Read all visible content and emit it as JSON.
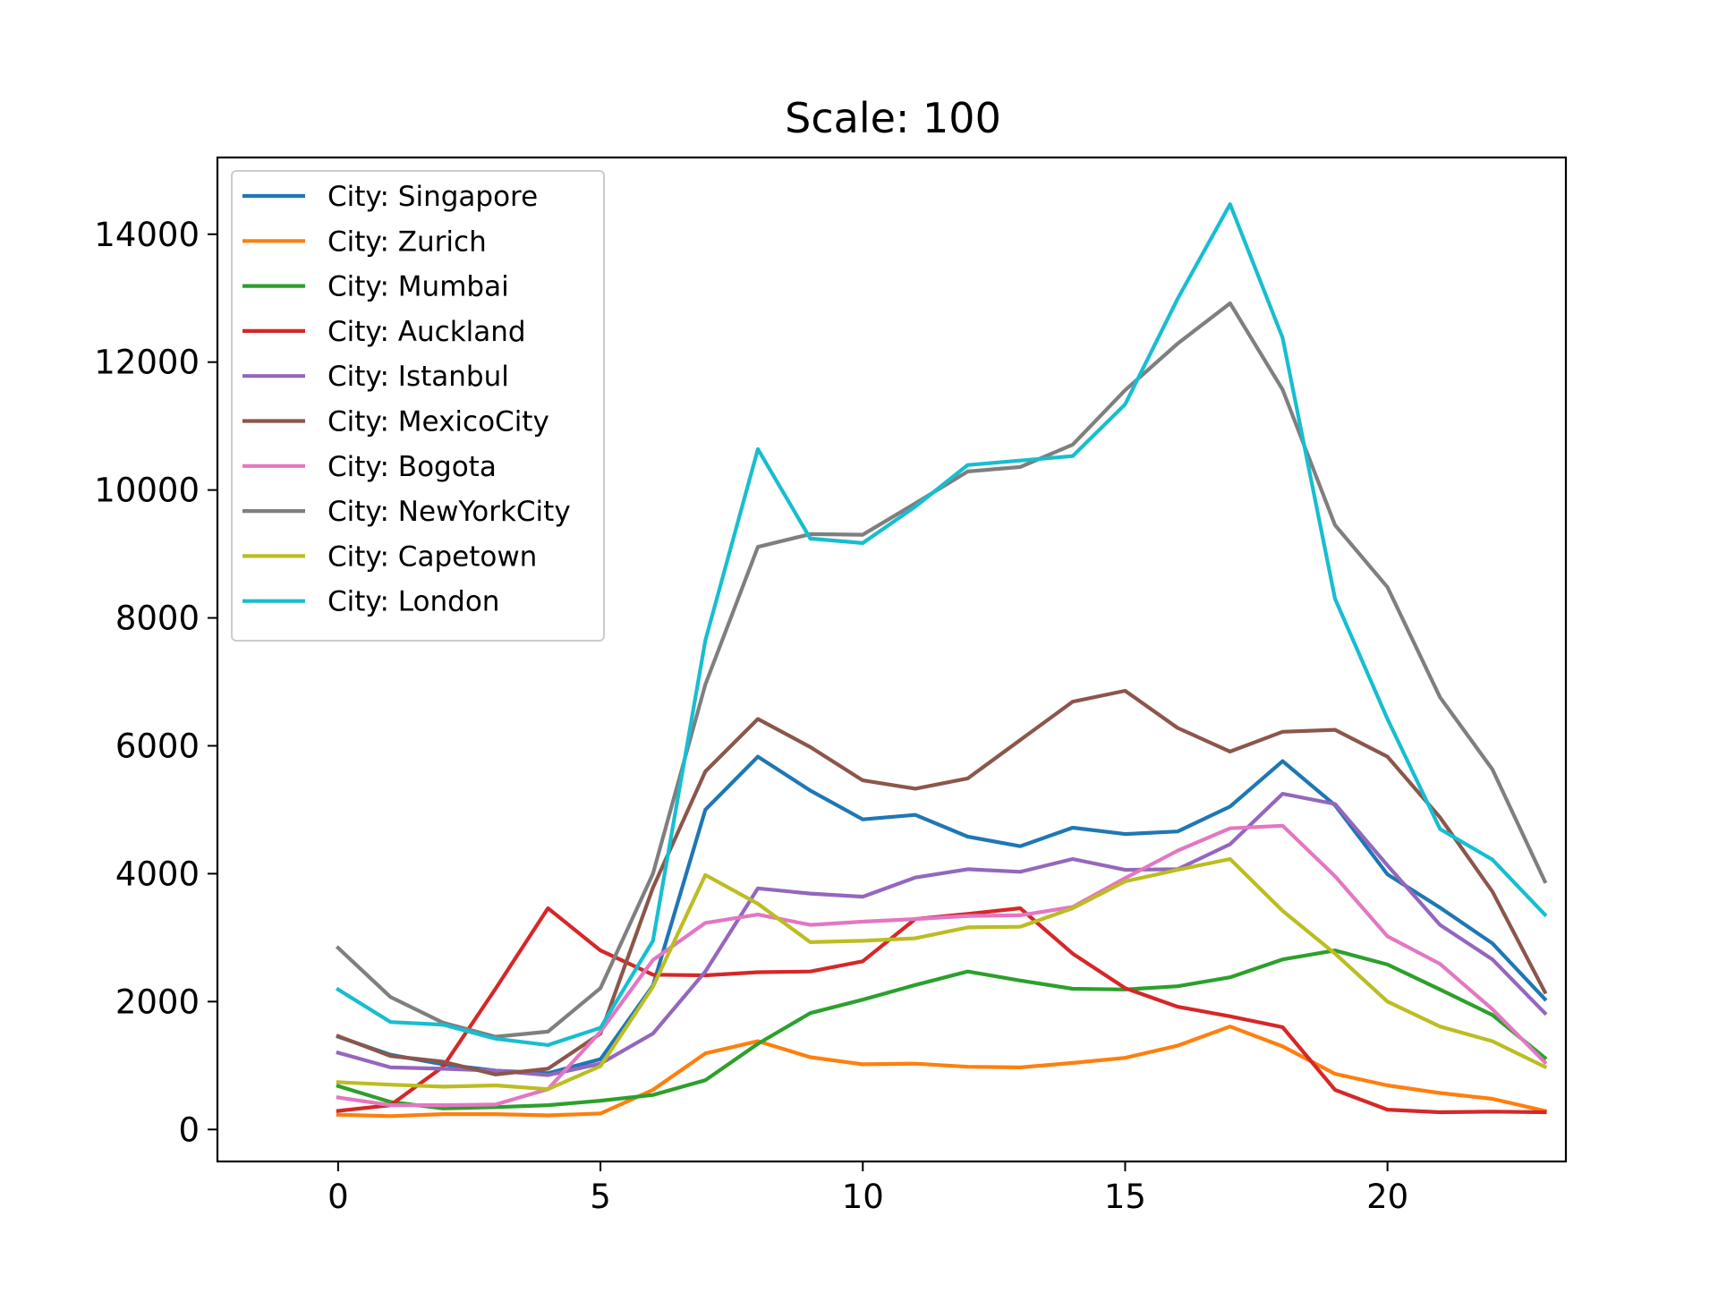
{
  "chart_data": {
    "type": "line",
    "title": "Scale: 100",
    "xlabel": "",
    "ylabel": "",
    "xlim": [
      -2.3,
      23.4
    ],
    "ylim": [
      -500,
      15200
    ],
    "xticks": [
      0,
      5,
      10,
      15,
      20
    ],
    "yticks": [
      0,
      2000,
      4000,
      6000,
      8000,
      10000,
      12000,
      14000
    ],
    "x": [
      0,
      1,
      2,
      3,
      4,
      5,
      6,
      7,
      8,
      9,
      10,
      11,
      12,
      13,
      14,
      15,
      16,
      17,
      18,
      19,
      20,
      21,
      22,
      23
    ],
    "grid": false,
    "legend_position": "top-left",
    "series": [
      {
        "name": "City: Singapore",
        "color": "#1f77b4",
        "values": [
          1450,
          1170,
          1020,
          920,
          880,
          1100,
          2250,
          5000,
          5830,
          5300,
          4850,
          4920,
          4580,
          4430,
          4720,
          4620,
          4660,
          5050,
          5760,
          5070,
          3990,
          3470,
          2910,
          2040
        ]
      },
      {
        "name": "City: Zurich",
        "color": "#ff7f0e",
        "values": [
          230,
          210,
          240,
          240,
          220,
          250,
          620,
          1190,
          1380,
          1130,
          1020,
          1030,
          980,
          970,
          1040,
          1120,
          1310,
          1610,
          1300,
          870,
          690,
          570,
          480,
          290
        ]
      },
      {
        "name": "City: Mumbai",
        "color": "#2ca02c",
        "values": [
          680,
          430,
          330,
          350,
          380,
          450,
          540,
          770,
          1340,
          1820,
          2030,
          2260,
          2470,
          2330,
          2200,
          2190,
          2240,
          2380,
          2660,
          2800,
          2580,
          2190,
          1790,
          1120
        ]
      },
      {
        "name": "City: Auckland",
        "color": "#d62728",
        "values": [
          290,
          380,
          980,
          2200,
          3460,
          2800,
          2420,
          2410,
          2460,
          2470,
          2630,
          3290,
          3370,
          3460,
          2750,
          2210,
          1920,
          1770,
          1600,
          620,
          310,
          270,
          280,
          270
        ]
      },
      {
        "name": "City: Istanbul",
        "color": "#9467bd",
        "values": [
          1200,
          970,
          950,
          920,
          850,
          1030,
          1500,
          2470,
          3770,
          3690,
          3640,
          3940,
          4070,
          4030,
          4230,
          4060,
          4070,
          4460,
          5250,
          5090,
          4130,
          3200,
          2660,
          1820
        ]
      },
      {
        "name": "City: MexicoCity",
        "color": "#8c564b",
        "values": [
          1460,
          1150,
          1060,
          860,
          950,
          1500,
          3780,
          5600,
          6420,
          5980,
          5460,
          5330,
          5490,
          6090,
          6690,
          6860,
          6280,
          5910,
          6220,
          6250,
          5830,
          4880,
          3720,
          2150
        ]
      },
      {
        "name": "City: Bogota",
        "color": "#e377c2",
        "values": [
          500,
          380,
          380,
          390,
          630,
          1530,
          2650,
          3230,
          3360,
          3200,
          3250,
          3290,
          3340,
          3350,
          3480,
          3930,
          4360,
          4710,
          4750,
          3960,
          3020,
          2590,
          1880,
          1050
        ]
      },
      {
        "name": "City: NewYorkCity",
        "color": "#7f7f7f",
        "values": [
          2840,
          2070,
          1670,
          1450,
          1530,
          2210,
          4000,
          6960,
          9110,
          9310,
          9300,
          9790,
          10290,
          10360,
          10710,
          11560,
          12290,
          12920,
          11570,
          9450,
          8480,
          6760,
          5630,
          3880
        ]
      },
      {
        "name": "City: Capetown",
        "color": "#bcbd22",
        "values": [
          740,
          700,
          670,
          690,
          630,
          990,
          2230,
          3980,
          3530,
          2930,
          2950,
          2990,
          3160,
          3170,
          3460,
          3880,
          4060,
          4230,
          3420,
          2750,
          2000,
          1610,
          1380,
          980
        ]
      },
      {
        "name": "City: London",
        "color": "#17becf",
        "values": [
          2190,
          1680,
          1640,
          1420,
          1320,
          1590,
          2950,
          7650,
          10640,
          9240,
          9170,
          9740,
          10390,
          10460,
          10530,
          11340,
          12990,
          14470,
          12380,
          8300,
          6420,
          4700,
          4220,
          3360
        ]
      }
    ]
  }
}
